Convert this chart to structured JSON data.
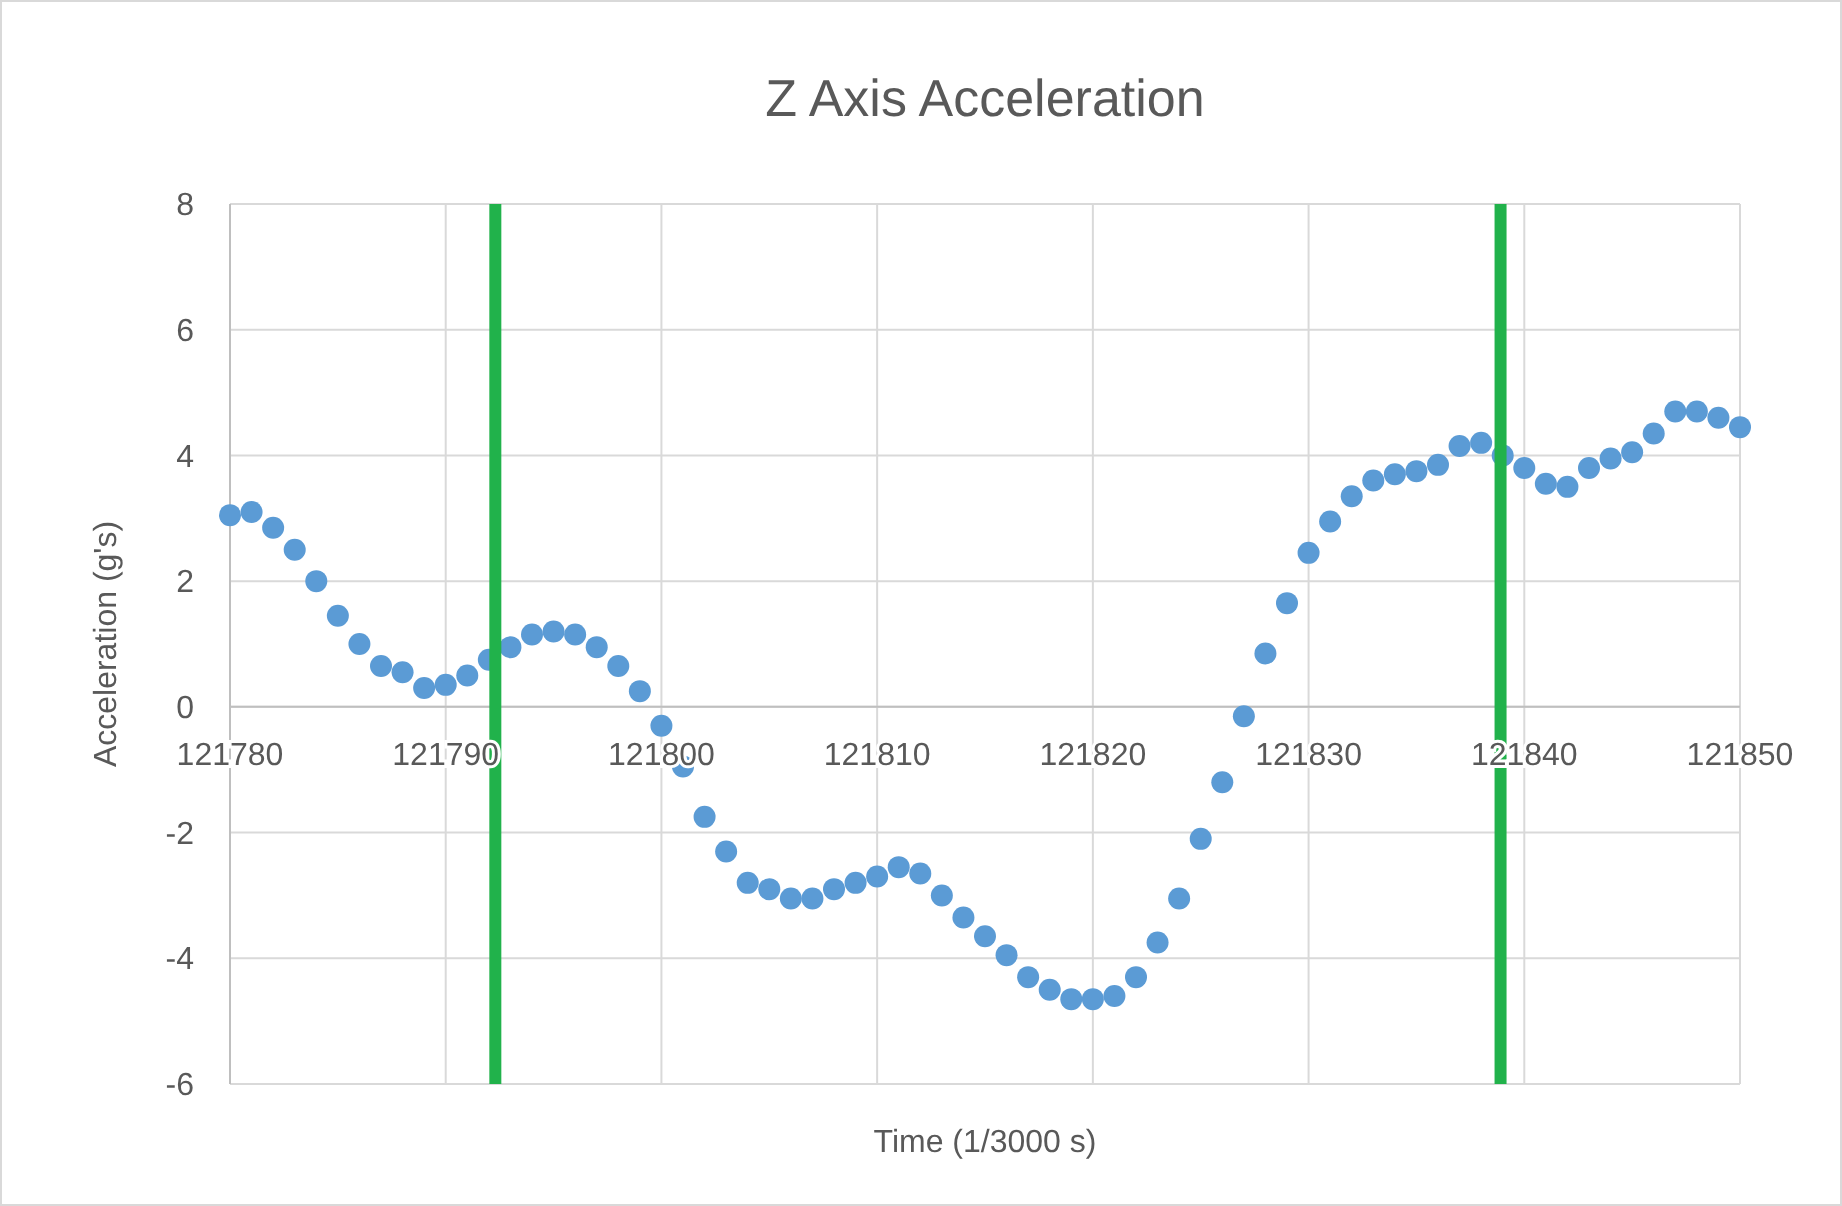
{
  "chart_data": {
    "type": "scatter",
    "title": "Z Axis Acceleration",
    "xlabel": "Time (1/3000 s)",
    "ylabel": "Acceleration (g's)",
    "x": [
      121780,
      121781,
      121782,
      121783,
      121784,
      121785,
      121786,
      121787,
      121788,
      121789,
      121790,
      121791,
      121792,
      121793,
      121794,
      121795,
      121796,
      121797,
      121798,
      121799,
      121800,
      121801,
      121802,
      121803,
      121804,
      121805,
      121806,
      121807,
      121808,
      121809,
      121810,
      121811,
      121812,
      121813,
      121814,
      121815,
      121816,
      121817,
      121818,
      121819,
      121820,
      121821,
      121822,
      121823,
      121824,
      121825,
      121826,
      121827,
      121828,
      121829,
      121830,
      121831,
      121832,
      121833,
      121834,
      121835,
      121836,
      121837,
      121838,
      121839,
      121840,
      121841,
      121842,
      121843,
      121844,
      121845,
      121846,
      121847,
      121848,
      121849,
      121850
    ],
    "series": [
      {
        "color": "#5b9bd5",
        "values": [
          3.05,
          3.1,
          2.85,
          2.5,
          2.0,
          1.45,
          1.0,
          0.65,
          0.55,
          0.3,
          0.35,
          0.5,
          0.75,
          0.95,
          1.15,
          1.2,
          1.15,
          0.95,
          0.65,
          0.25,
          -0.3,
          -0.95,
          -1.75,
          -2.3,
          -2.8,
          -2.9,
          -3.05,
          -3.05,
          -2.9,
          -2.8,
          -2.7,
          -2.55,
          -2.65,
          -3.0,
          -3.35,
          -3.65,
          -3.95,
          -4.3,
          -4.5,
          -4.65,
          -4.65,
          -4.6,
          -4.3,
          -3.75,
          -3.05,
          -2.1,
          -1.2,
          -0.15,
          0.85,
          1.65,
          2.45,
          2.95,
          3.35,
          3.6,
          3.7,
          3.75,
          3.85,
          4.15,
          4.2,
          4.0,
          3.8,
          3.55,
          3.5,
          3.8,
          3.95,
          4.05,
          4.35,
          4.7,
          4.7,
          4.6,
          4.45
        ]
      }
    ],
    "xlim": [
      121780,
      121850
    ],
    "xticks": [
      121780,
      121790,
      121800,
      121810,
      121820,
      121830,
      121840,
      121850
    ],
    "ylim": [
      -6,
      8
    ],
    "yticks": [
      -6,
      -4,
      -2,
      0,
      2,
      4,
      6,
      8
    ],
    "grid": true,
    "marker": "circle",
    "ref_lines": [
      {
        "axis": "x",
        "value": 121792.3,
        "color": "#21b24b"
      },
      {
        "axis": "x",
        "value": 121838.9,
        "color": "#21b24b"
      }
    ]
  }
}
